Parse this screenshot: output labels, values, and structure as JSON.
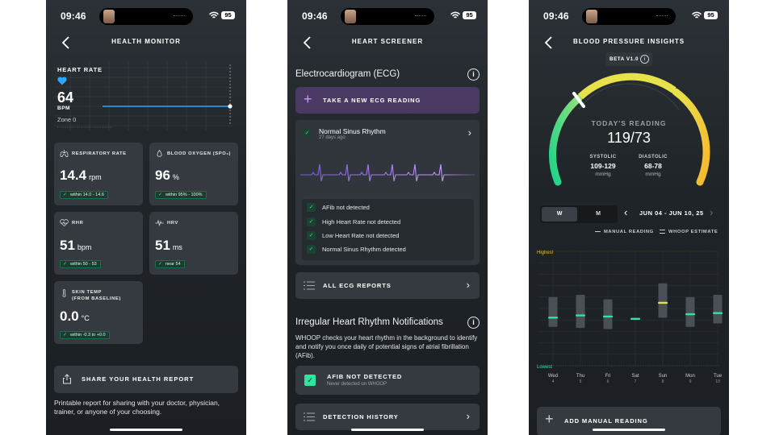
{
  "status": {
    "time": "09:46",
    "battery": "95"
  },
  "colors": {
    "accent_green": "#2ee59d",
    "accent_purple": "#c79bff",
    "heart_blue": "#2aa7ff",
    "amber": "#f5b82e",
    "yellow": "#e7e24b"
  },
  "screen1": {
    "title": "HEALTH MONITOR",
    "heart_rate": {
      "label": "HEART RATE",
      "value": "64",
      "unit": "BPM",
      "zone": "Zone 0"
    },
    "cards": [
      {
        "icon": "lungs-icon",
        "label": "RESPIRATORY RATE",
        "value": "14.4",
        "unit": "rpm",
        "range": "within 14.0 - 14.6"
      },
      {
        "icon": "blood-drop-icon",
        "label": "BLOOD OXYGEN (SPO₂)",
        "value": "96",
        "unit": "%",
        "range": "within 95% - 100%"
      },
      {
        "icon": "heart-pulse-icon",
        "label": "RHR",
        "value": "51",
        "unit": "bpm",
        "range": "within 50 - 53"
      },
      {
        "icon": "hrv-icon",
        "label": "HRV",
        "value": "51",
        "unit": "ms",
        "range": "near 54"
      },
      {
        "icon": "thermometer-icon",
        "label": "SKIN TEMP",
        "label2": "(FROM BASELINE)",
        "value": "0.0",
        "unit": "°C",
        "range": "within -0.3 to +0.0"
      }
    ],
    "share_label": "SHARE YOUR HEALTH REPORT",
    "share_desc": "Printable report for sharing with your doctor, physician, trainer, or anyone of your choosing."
  },
  "screen2": {
    "title": "HEART SCREENER",
    "ecg_heading": "Electrocardiogram (ECG)",
    "take_label": "TAKE A NEW ECG READING",
    "reading": {
      "title": "Normal Sinus Rhythm",
      "when": "27 days ago"
    },
    "checks": [
      "AFib not detected",
      "High Heart Rate not detected",
      "Low Heart Rate not detected",
      "Normal Sinus Rhythm detected"
    ],
    "all_reports": "ALL ECG REPORTS",
    "irr_heading": "Irregular Heart Rhythm Notifications",
    "irr_desc": "WHOOP checks your heart rhythm in the background to identify and notify you once daily of potential signs of atrial fibrillation (AFib).",
    "afib_title": "AFIB NOT DETECTED",
    "afib_sub": "Never detected on WHOOP",
    "history": "DETECTION HISTORY"
  },
  "screen3": {
    "title": "BLOOD PRESSURE INSIGHTS",
    "beta": "BETA V1.0",
    "today_label": "TODAY'S READING",
    "today_value": "119/73",
    "systolic": {
      "label": "SYSTOLIC",
      "range": "109-129",
      "unit": "mmHg"
    },
    "diastolic": {
      "label": "DIASTOLIC",
      "range": "68-78",
      "unit": "mmHg"
    },
    "seg": [
      "W",
      "M"
    ],
    "date_range": "JUN 04 - JUN 10, 25",
    "legend_manual": "MANUAL READING",
    "legend_estimate": "WHOOP ESTIMATE",
    "add_label": "ADD MANUAL READING"
  },
  "chart_data": {
    "type": "bar",
    "ylabel_high": "Highest",
    "ylabel_low": "Lowest",
    "categories": [
      "Wed",
      "Thu",
      "Fri",
      "Sat",
      "Sun",
      "Mon",
      "Tue"
    ],
    "dates": [
      "4",
      "5",
      "6",
      "7",
      "8",
      "9",
      "10"
    ],
    "range_low": [
      0.34,
      0.33,
      0.32,
      null,
      0.42,
      0.34,
      0.37
    ],
    "range_high": [
      0.6,
      0.62,
      0.58,
      null,
      0.72,
      0.6,
      0.62
    ],
    "marker": [
      0.42,
      0.44,
      0.43,
      0.41,
      0.55,
      0.45,
      0.46
    ],
    "marker_colors": [
      "#2ee59d",
      "#2ee59d",
      "#2ee59d",
      "#2ee59d",
      "#e7e24b",
      "#2ee59d",
      "#2ee59d"
    ]
  }
}
